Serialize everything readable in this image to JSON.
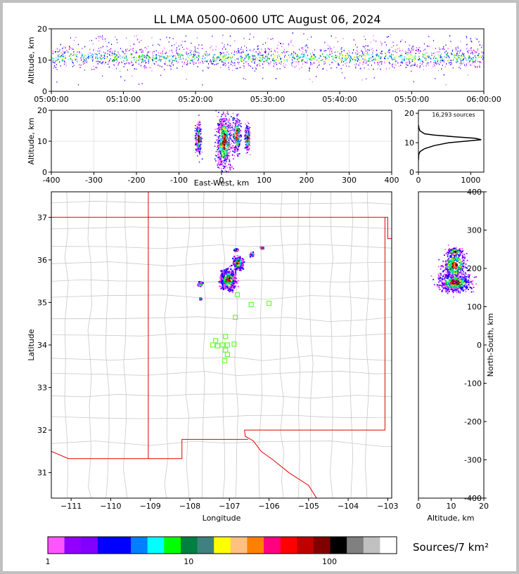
{
  "chart_data": [
    {
      "type": "scatter",
      "panel": "altitude-vs-time",
      "title": "LL LMA 0500-0600 UTC August 06, 2024",
      "ylabel": "Altitude, km",
      "xlim": [
        "05:00:00",
        "06:00:00"
      ],
      "ylim": [
        0,
        20
      ],
      "x_ticks": [
        "05:00:00",
        "05:10:00",
        "05:20:00",
        "05:30:00",
        "05:40:00",
        "05:50:00",
        "06:00:00"
      ],
      "y_ticks": [
        0,
        10,
        20
      ],
      "altitude_band_km": [
        7,
        15
      ],
      "core_altitude_km": 11
    },
    {
      "type": "heatmap",
      "panel": "altitude-vs-east-west",
      "xlabel": "East-West, km",
      "ylabel": "Altitude, km",
      "xlim": [
        -400,
        400
      ],
      "ylim": [
        0,
        20
      ],
      "x_ticks": [
        -400,
        -300,
        -200,
        -100,
        0,
        100,
        200,
        300,
        400
      ],
      "y_ticks": [
        0,
        10,
        20
      ],
      "clusters": [
        {
          "x_km": -55,
          "alt_km": 11,
          "width_km": 10,
          "height_km": 10
        },
        {
          "x_km": 5,
          "alt_km": 10,
          "width_km": 25,
          "height_km": 18
        },
        {
          "x_km": 35,
          "alt_km": 12,
          "width_km": 15,
          "height_km": 12
        },
        {
          "x_km": 60,
          "alt_km": 11,
          "width_km": 8,
          "height_km": 8
        }
      ]
    },
    {
      "type": "line",
      "panel": "altitude-histogram",
      "annotation": "16,293 sources",
      "xlim": [
        0,
        1250
      ],
      "ylim": [
        0,
        21
      ],
      "x_ticks": [
        0,
        1000
      ],
      "y_ticks": [
        0,
        10,
        20
      ],
      "profile": [
        {
          "count": 0,
          "alt": 4
        },
        {
          "count": 5,
          "alt": 6
        },
        {
          "count": 30,
          "alt": 7
        },
        {
          "count": 120,
          "alt": 8
        },
        {
          "count": 300,
          "alt": 9
        },
        {
          "count": 580,
          "alt": 10
        },
        {
          "count": 950,
          "alt": 10.6
        },
        {
          "count": 1200,
          "alt": 11
        },
        {
          "count": 1080,
          "alt": 11.5
        },
        {
          "count": 700,
          "alt": 12
        },
        {
          "count": 300,
          "alt": 12.6
        },
        {
          "count": 120,
          "alt": 13
        },
        {
          "count": 30,
          "alt": 14
        },
        {
          "count": 10,
          "alt": 15
        },
        {
          "count": 2,
          "alt": 16
        }
      ]
    },
    {
      "type": "heatmap",
      "panel": "plan-view-map",
      "xlabel": "Longitude",
      "ylabel": "Latitude",
      "xlim": [
        -111.5,
        -102.9
      ],
      "ylim": [
        30.4,
        37.6
      ],
      "x_ticks": [
        -111,
        -110,
        -109,
        -108,
        -107,
        -106,
        -105,
        -104,
        -103
      ],
      "y_ticks": [
        31,
        32,
        33,
        34,
        35,
        36,
        37
      ],
      "source_clusters": [
        {
          "lon": -107.05,
          "lat": 35.55,
          "spread_lon": 0.18,
          "spread_lat": 0.22
        },
        {
          "lon": -106.8,
          "lat": 35.95,
          "spread_lon": 0.12,
          "spread_lat": 0.15
        },
        {
          "lon": -107.75,
          "lat": 35.45,
          "spread_lon": 0.06,
          "spread_lat": 0.05
        },
        {
          "lon": -106.45,
          "lat": 36.15,
          "spread_lon": 0.05,
          "spread_lat": 0.05
        },
        {
          "lon": -106.2,
          "lat": 36.3,
          "spread_lon": 0.05,
          "spread_lat": 0.03
        },
        {
          "lon": -106.85,
          "lat": 36.25,
          "spread_lon": 0.05,
          "spread_lat": 0.03
        },
        {
          "lon": -107.75,
          "lat": 35.1,
          "spread_lon": 0.02,
          "spread_lat": 0.02
        }
      ],
      "stations": [
        {
          "lon": -106.8,
          "lat": 35.18
        },
        {
          "lon": -106.45,
          "lat": 34.95
        },
        {
          "lon": -106.0,
          "lat": 34.98
        },
        {
          "lon": -106.85,
          "lat": 34.65
        },
        {
          "lon": -107.1,
          "lat": 34.2
        },
        {
          "lon": -107.35,
          "lat": 34.1
        },
        {
          "lon": -107.42,
          "lat": 34.0
        },
        {
          "lon": -107.3,
          "lat": 33.98
        },
        {
          "lon": -107.18,
          "lat": 34.0
        },
        {
          "lon": -107.05,
          "lat": 34.0
        },
        {
          "lon": -106.88,
          "lat": 34.02
        },
        {
          "lon": -107.1,
          "lat": 33.88
        },
        {
          "lon": -107.05,
          "lat": 33.78
        },
        {
          "lon": -107.12,
          "lat": 33.63
        }
      ],
      "state_borders": [
        [
          [
            -111.5,
            37.0
          ],
          [
            -103.0,
            37.0
          ],
          [
            -103.0,
            36.5
          ],
          [
            -102.9,
            36.5
          ]
        ],
        [
          [
            -109.05,
            37.6
          ],
          [
            -109.05,
            31.33
          ]
        ],
        [
          [
            -111.5,
            31.5
          ],
          [
            -111.07,
            31.33
          ],
          [
            -108.2,
            31.33
          ],
          [
            -108.2,
            31.78
          ],
          [
            -106.53,
            31.78
          ]
        ],
        [
          [
            -103.07,
            37.0
          ],
          [
            -103.07,
            32.0
          ],
          [
            -106.62,
            32.0
          ]
        ],
        [
          [
            -106.62,
            32.0
          ],
          [
            -106.6,
            31.85
          ],
          [
            -106.4,
            31.75
          ],
          [
            -106.2,
            31.5
          ],
          [
            -105.9,
            31.3
          ],
          [
            -105.5,
            31.0
          ],
          [
            -105.0,
            30.7
          ],
          [
            -104.8,
            30.4
          ]
        ]
      ]
    },
    {
      "type": "heatmap",
      "panel": "north-south-vs-altitude",
      "xlabel": "Altitude, km",
      "ylabel": "North-South, km",
      "xlim": [
        0,
        20
      ],
      "ylim": [
        -400,
        400
      ],
      "x_ticks": [
        0,
        10,
        20
      ],
      "y_ticks": [
        -400,
        -300,
        -200,
        -100,
        0,
        100,
        200,
        300,
        400
      ],
      "clusters": [
        {
          "alt_km": 11,
          "ns_km": 165,
          "width_km": 4,
          "height_km": 20
        },
        {
          "alt_km": 11,
          "ns_km": 210,
          "width_km": 3,
          "height_km": 30
        },
        {
          "alt_km": 11,
          "ns_km": 245,
          "width_km": 2,
          "height_km": 8
        }
      ]
    },
    {
      "type": "bar",
      "panel": "colorbar",
      "title": "Sources/7 km²",
      "scale": "log",
      "range": [
        1,
        300
      ],
      "tick_labels": [
        "1",
        "10",
        "100"
      ],
      "tick_values": [
        1,
        10,
        100
      ],
      "colors": [
        "#ff55ff",
        "#9100ff",
        "#8000ff",
        "#0000ff",
        "#0000ff",
        "#0080ff",
        "#00ffff",
        "#00ff00",
        "#008040",
        "#408080",
        "#ffff00",
        "#ffc080",
        "#ff8000",
        "#ff0080",
        "#ff0000",
        "#c00000",
        "#800000",
        "#000000",
        "#808080",
        "#c0c0c0",
        "#ffffff"
      ]
    }
  ]
}
